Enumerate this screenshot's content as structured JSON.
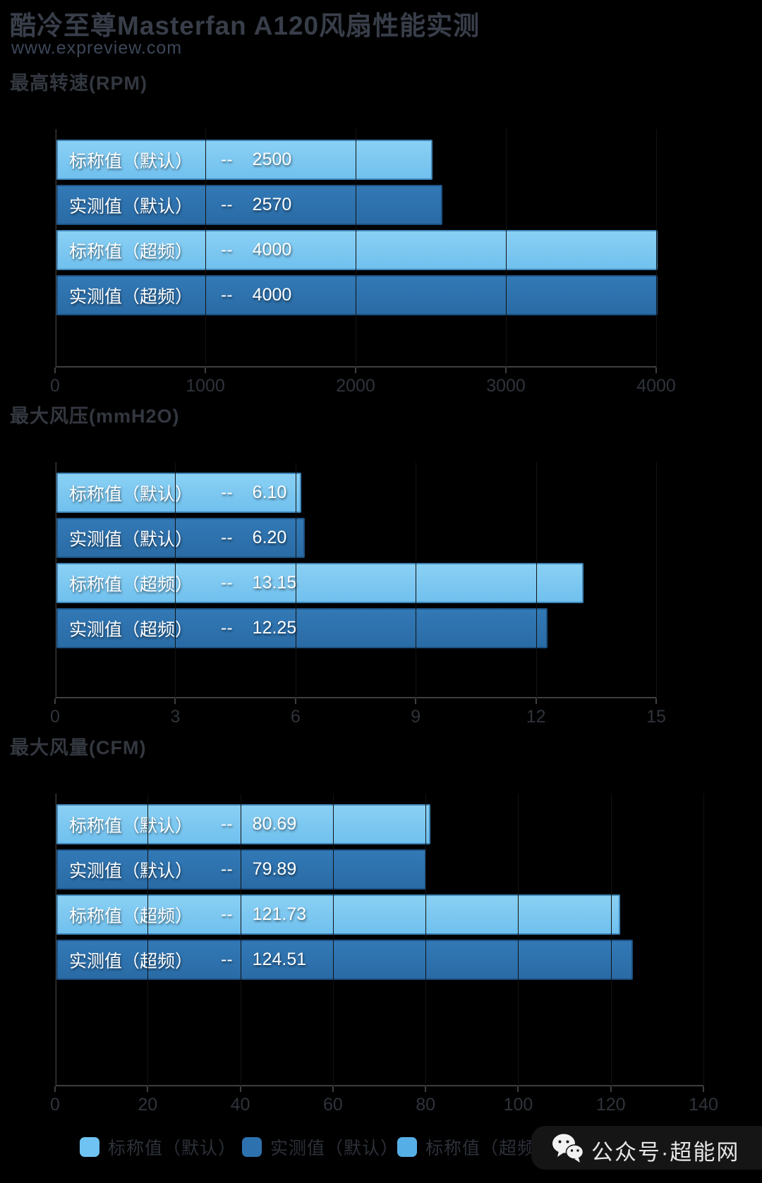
{
  "header": {
    "title": "酷冷至尊Masterfan A120风扇性能实测",
    "url": "www.expreview.com"
  },
  "labels": {
    "separator": "--"
  },
  "colors": {
    "background": "#000000",
    "bar_light": "#7AC6F0",
    "bar_dark": "#2D72AE",
    "axis": "#3F3F3F",
    "bar_text": "#FFFFFF",
    "faint_text": "#33373F",
    "watermark_text": "#E6E6E6"
  },
  "chart_data": [
    {
      "type": "bar",
      "orientation": "horizontal",
      "title": "最高转速(RPM)",
      "categories": [
        "标称值（默认）",
        "实测值（默认）",
        "标称值（超频）",
        "实测值（超频）"
      ],
      "values": [
        2500,
        2570,
        4000,
        4000
      ],
      "value_labels": [
        "2500",
        "2570",
        "4000",
        "4000"
      ],
      "xlim": [
        0,
        4000
      ],
      "xticks": [
        "0",
        "1000",
        "2000",
        "3000",
        "4000"
      ],
      "bar_colors": [
        "light",
        "dark",
        "light",
        "dark"
      ],
      "grid": false,
      "legend_position": "bottom"
    },
    {
      "type": "bar",
      "orientation": "horizontal",
      "title": "最大风压(mmH2O)",
      "categories": [
        "标称值（默认）",
        "实测值（默认）",
        "标称值（超频）",
        "实测值（超频）"
      ],
      "values": [
        6.1,
        6.2,
        13.15,
        12.25
      ],
      "value_labels": [
        "6.10",
        "6.20",
        "13.15",
        "12.25"
      ],
      "xlim": [
        0,
        15
      ],
      "xticks": [
        "0",
        "3",
        "6",
        "9",
        "12",
        "15"
      ],
      "bar_colors": [
        "light",
        "dark",
        "light",
        "dark"
      ],
      "grid": false,
      "legend_position": "bottom"
    },
    {
      "type": "bar",
      "orientation": "horizontal",
      "title": "最大风量(CFM)",
      "categories": [
        "标称值（默认）",
        "实测值（默认）",
        "标称值（超频）",
        "实测值（超频）"
      ],
      "values": [
        80.69,
        79.89,
        121.73,
        124.51
      ],
      "value_labels": [
        "80.69",
        "79.89",
        "121.73",
        "124.51"
      ],
      "xlim": [
        0,
        140
      ],
      "xticks": [
        "0",
        "20",
        "40",
        "60",
        "80",
        "100",
        "120",
        "140"
      ],
      "bar_colors": [
        "light",
        "dark",
        "light",
        "dark"
      ],
      "grid": false,
      "legend_position": "bottom"
    }
  ],
  "legend": {
    "items": [
      {
        "label": "标称值（默认）",
        "color": "#6EC3F2"
      },
      {
        "label": "实测值（默认）",
        "color": "#2D72AE"
      },
      {
        "label": "标称值（超频）",
        "color": "#56AEE6"
      },
      {
        "label": "实测值（超频）",
        "color": "#28649C"
      }
    ]
  },
  "watermark": {
    "icon": "wechat-icon",
    "text": "公众号·超能网"
  }
}
